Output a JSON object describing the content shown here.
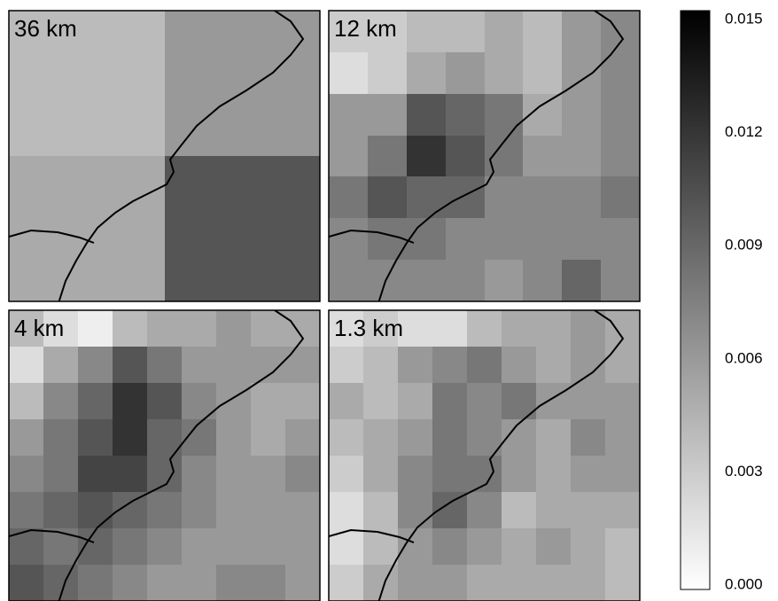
{
  "panels": [
    {
      "label": "36 km",
      "grid": [
        [
          0.004,
          0.006
        ],
        [
          0.005,
          0.01
        ]
      ]
    },
    {
      "label": "12 km",
      "grid": [
        [
          0.003,
          0.003,
          0.004,
          0.004,
          0.005,
          0.004,
          0.006,
          0.007
        ],
        [
          0.002,
          0.003,
          0.005,
          0.006,
          0.005,
          0.004,
          0.006,
          0.007
        ],
        [
          0.006,
          0.006,
          0.01,
          0.009,
          0.008,
          0.005,
          0.006,
          0.007
        ],
        [
          0.006,
          0.008,
          0.012,
          0.01,
          0.008,
          0.006,
          0.006,
          0.007
        ],
        [
          0.008,
          0.01,
          0.009,
          0.009,
          0.007,
          0.007,
          0.007,
          0.008
        ],
        [
          0.007,
          0.008,
          0.008,
          0.007,
          0.007,
          0.007,
          0.007,
          0.007
        ],
        [
          0.007,
          0.007,
          0.007,
          0.007,
          0.006,
          0.007,
          0.009,
          0.007
        ]
      ]
    },
    {
      "label": "4 km",
      "grid": [
        [
          0.004,
          0.002,
          0.001,
          0.004,
          0.005,
          0.005,
          0.006,
          0.005,
          0.005
        ],
        [
          0.002,
          0.005,
          0.007,
          0.01,
          0.008,
          0.006,
          0.006,
          0.006,
          0.006
        ],
        [
          0.004,
          0.007,
          0.009,
          0.012,
          0.01,
          0.007,
          0.006,
          0.005,
          0.005
        ],
        [
          0.006,
          0.008,
          0.01,
          0.012,
          0.009,
          0.008,
          0.006,
          0.005,
          0.006
        ],
        [
          0.007,
          0.008,
          0.011,
          0.011,
          0.009,
          0.007,
          0.006,
          0.006,
          0.007
        ],
        [
          0.008,
          0.009,
          0.01,
          0.009,
          0.008,
          0.007,
          0.006,
          0.006,
          0.006
        ],
        [
          0.009,
          0.008,
          0.009,
          0.008,
          0.007,
          0.006,
          0.006,
          0.006,
          0.006
        ],
        [
          0.01,
          0.009,
          0.008,
          0.007,
          0.006,
          0.006,
          0.007,
          0.007,
          0.006
        ]
      ]
    },
    {
      "label": "1.3 km",
      "grid": [
        [
          0.002,
          0.003,
          0.002,
          0.002,
          0.004,
          0.005,
          0.005,
          0.006,
          0.005
        ],
        [
          0.003,
          0.004,
          0.006,
          0.007,
          0.008,
          0.006,
          0.005,
          0.006,
          0.005
        ],
        [
          0.005,
          0.004,
          0.005,
          0.008,
          0.007,
          0.008,
          0.006,
          0.006,
          0.006
        ],
        [
          0.004,
          0.005,
          0.006,
          0.008,
          0.007,
          0.006,
          0.005,
          0.007,
          0.006
        ],
        [
          0.003,
          0.005,
          0.007,
          0.008,
          0.008,
          0.006,
          0.005,
          0.006,
          0.006
        ],
        [
          0.002,
          0.004,
          0.007,
          0.009,
          0.007,
          0.004,
          0.005,
          0.005,
          0.005
        ],
        [
          0.002,
          0.004,
          0.006,
          0.007,
          0.006,
          0.005,
          0.006,
          0.005,
          0.004
        ],
        [
          0.003,
          0.005,
          0.006,
          0.006,
          0.005,
          0.005,
          0.005,
          0.005,
          0.004
        ]
      ]
    }
  ],
  "colorbar": {
    "lim": [
      0,
      0.015
    ],
    "ticks": [
      {
        "value": 0.015,
        "label": "0.015"
      },
      {
        "value": 0.012,
        "label": "0.012"
      },
      {
        "value": 0.009,
        "label": "0.009"
      },
      {
        "value": 0.006,
        "label": "0.006"
      },
      {
        "value": 0.003,
        "label": "0.003"
      },
      {
        "value": 0,
        "label": "0.000"
      }
    ]
  }
}
